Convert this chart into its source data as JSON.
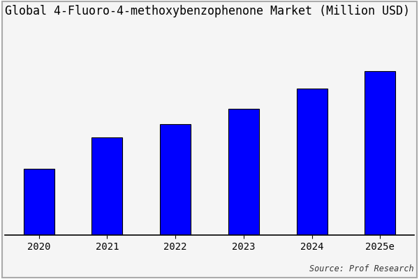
{
  "title": "Global 4-Fluoro-4-methoxybenzophenone Market (Million USD)",
  "categories": [
    "2020",
    "2021",
    "2022",
    "2023",
    "2024",
    "2025e"
  ],
  "values": [
    30,
    44,
    50,
    57,
    66,
    74
  ],
  "bar_color": "#0000FF",
  "bar_edgecolor": "#000000",
  "background_color": "#f5f5f5",
  "plot_bg_color": "#f5f5f5",
  "border_color": "#aaaaaa",
  "source_text": "Source: Prof Research",
  "title_fontsize": 12,
  "tick_fontsize": 10,
  "source_fontsize": 8.5,
  "ylim": [
    0,
    95
  ],
  "bar_width": 0.45
}
